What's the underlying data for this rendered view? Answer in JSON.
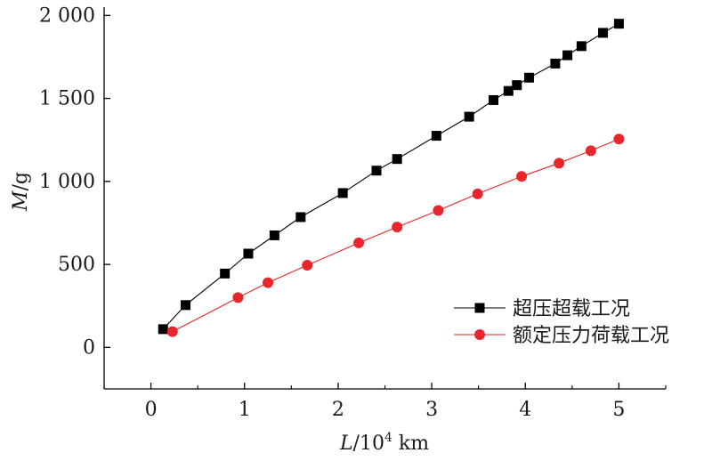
{
  "chart_data": {
    "type": "line",
    "title": "",
    "xlabel": {
      "var": "L",
      "sep": "/10",
      "sup": "4",
      "unit": " km"
    },
    "ylabel": {
      "var": "M",
      "unit": "/g"
    },
    "xlim": [
      -0.5,
      5.5
    ],
    "ylim": [
      -250,
      2050
    ],
    "xticks": [
      0,
      1,
      2,
      3,
      4,
      5
    ],
    "xtick_labels": [
      "0",
      "1",
      "2",
      "3",
      "4",
      "5"
    ],
    "yticks": [
      0,
      500,
      1000,
      1500,
      2000
    ],
    "ytick_labels": [
      "0",
      "500",
      "1 000",
      "1 500",
      "2 000"
    ],
    "grid": false,
    "legend_position": "right",
    "series": [
      {
        "name": "超压超载工况",
        "color": "#000000",
        "marker": "square",
        "x": [
          0.13,
          0.37,
          0.79,
          1.04,
          1.32,
          1.6,
          2.05,
          2.41,
          2.63,
          3.05,
          3.4,
          3.66,
          3.82,
          3.91,
          4.04,
          4.32,
          4.45,
          4.6,
          4.83,
          5.0
        ],
        "y": [
          110,
          255,
          445,
          565,
          675,
          785,
          930,
          1065,
          1135,
          1275,
          1390,
          1490,
          1545,
          1580,
          1625,
          1710,
          1760,
          1815,
          1895,
          1950
        ]
      },
      {
        "name": "额定压力荷载工况",
        "color": "#e8262b",
        "marker": "circle",
        "x": [
          0.23,
          0.93,
          1.25,
          1.67,
          2.22,
          2.63,
          3.07,
          3.49,
          3.96,
          4.36,
          4.7,
          5.0
        ],
        "y": [
          95,
          300,
          390,
          495,
          630,
          725,
          825,
          925,
          1030,
          1110,
          1185,
          1255
        ]
      }
    ]
  }
}
